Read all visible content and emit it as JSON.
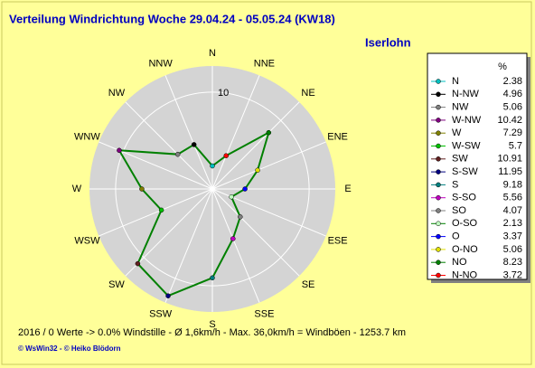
{
  "chart_data": {
    "type": "radar",
    "title": "Verteilung Windrichtung   Woche 29.04.24 - 05.05.24 (KW18)",
    "location": "Iserlohn",
    "categories": [
      "N",
      "NNW",
      "NW",
      "WNW",
      "W",
      "WSW",
      "SW",
      "SSW",
      "S",
      "SSE",
      "SE",
      "ESE",
      "E",
      "ENE",
      "NE",
      "NNE"
    ],
    "values": [
      2.38,
      4.96,
      5.06,
      10.42,
      7.29,
      5.7,
      10.91,
      11.95,
      9.18,
      5.56,
      4.07,
      2.13,
      3.37,
      5.06,
      8.23,
      3.72
    ],
    "legend_title": "%",
    "legend_names": [
      "N",
      "N-NW",
      "NW",
      "W-NW",
      "W",
      "W-SW",
      "SW",
      "S-SW",
      "S",
      "S-SO",
      "SO",
      "O-SO",
      "O",
      "O-NO",
      "NO",
      "N-NO"
    ],
    "colors": [
      "#00c0c0",
      "#000000",
      "#808080",
      "#800080",
      "#808000",
      "#00c000",
      "#602020",
      "#000080",
      "#008080",
      "#c000c0",
      "#808080",
      "#c0ffc0",
      "#0000ff",
      "#e0e000",
      "#008000",
      "#ff0000"
    ],
    "line_color": "#008000",
    "rlim": [
      0,
      12.7
    ],
    "rticks": [
      10
    ],
    "footer": "2016 / 0 Werte  -> 0.0% Windstille   -   Ø 1,6km/h  -  Max. 36,0km/h = Windböen   -   1253.7 km",
    "credits": "© WsWin32  -  © Heiko Blödorn"
  }
}
